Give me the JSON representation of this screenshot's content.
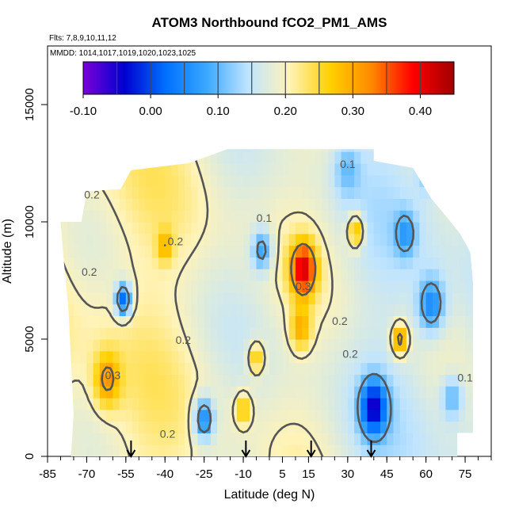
{
  "chart_data": {
    "type": "heatmap",
    "title": "ATOM3 Northbound fCO2_PM1_AMS",
    "subtitle_flights": "Flts: 7,8,9,10,11,12",
    "subtitle_dates": "MMDD: 1014,1017,1019,1020,1023,1025",
    "xlabel": "Latitude (deg N)",
    "ylabel": "Altitude (m)",
    "xlim": [
      -85,
      85
    ],
    "ylim": [
      0,
      17500
    ],
    "x_ticks": [
      -85,
      -70,
      -55,
      -40,
      -25,
      -10,
      5,
      15,
      30,
      45,
      60,
      75
    ],
    "y_ticks": [
      0,
      5000,
      10000,
      15000
    ],
    "colorbar": {
      "min": -0.1,
      "max": 0.45,
      "ticks": [
        -0.1,
        0.0,
        0.1,
        0.2,
        0.3,
        0.4
      ],
      "tick_labels": [
        "-0.10",
        "0.00",
        "0.10",
        "0.20",
        "0.30",
        "0.40"
      ],
      "colors": [
        "#7a00d8",
        "#0000d0",
        "#0070ff",
        "#3aa8ff",
        "#bfe4ff",
        "#fff3b8",
        "#ffd000",
        "#ff8800",
        "#ff0000",
        "#a00000"
      ]
    },
    "contour_labels": [
      {
        "text": "0.1",
        "x": 30,
        "y": 12300
      },
      {
        "text": "0.2",
        "x": -68,
        "y": 11000
      },
      {
        "text": "0.2",
        "x": -36,
        "y": 9000
      },
      {
        "text": "0.1",
        "x": -2,
        "y": 10000
      },
      {
        "text": "0.2",
        "x": -69,
        "y": 7700
      },
      {
        "text": "0.3",
        "x": 13,
        "y": 7100
      },
      {
        "text": "0.2",
        "x": -33,
        "y": 4800
      },
      {
        "text": "0.2",
        "x": 27,
        "y": 5600
      },
      {
        "text": "0.2",
        "x": 31,
        "y": 4200
      },
      {
        "text": "0.3",
        "x": -60,
        "y": 3300
      },
      {
        "text": "0.2",
        "x": -39,
        "y": 800
      },
      {
        "text": "0.1",
        "x": 75,
        "y": 3200
      }
    ],
    "profile_markers_lat": [
      -53,
      -9,
      16,
      39
    ],
    "regions": [
      {
        "lat": -56,
        "alt": 6700,
        "value": 0.02,
        "r": 3
      },
      {
        "lat": -25,
        "alt": 1600,
        "value": 0.05,
        "r": 4
      },
      {
        "lat": 13,
        "alt": 8000,
        "value": 0.42,
        "r": 5
      },
      {
        "lat": 12,
        "alt": 5500,
        "value": 0.3,
        "r": 4
      },
      {
        "lat": 40,
        "alt": 2100,
        "value": -0.06,
        "r": 5
      },
      {
        "lat": 52,
        "alt": 9500,
        "value": 0.06,
        "r": 4
      },
      {
        "lat": 62,
        "alt": 6500,
        "value": 0.05,
        "r": 5
      },
      {
        "lat": 30,
        "alt": 12200,
        "value": 0.1,
        "r": 5
      },
      {
        "lat": -62,
        "alt": 3300,
        "value": 0.32,
        "r": 5
      },
      {
        "lat": -40,
        "alt": 9000,
        "value": 0.3,
        "r": 3
      },
      {
        "lat": 50,
        "alt": 5000,
        "value": 0.32,
        "r": 3
      },
      {
        "lat": -3,
        "alt": 8800,
        "value": 0.08,
        "r": 4
      },
      {
        "lat": 70,
        "alt": 2500,
        "value": 0.1,
        "r": 4
      },
      {
        "lat": -10,
        "alt": 2000,
        "value": 0.28,
        "r": 3
      },
      {
        "lat": -5,
        "alt": 4200,
        "value": 0.27,
        "r": 3
      },
      {
        "lat": 33,
        "alt": 9600,
        "value": 0.28,
        "r": 3
      },
      {
        "lat": 60,
        "alt": 12000,
        "value": 0.12,
        "r": 4
      }
    ]
  }
}
